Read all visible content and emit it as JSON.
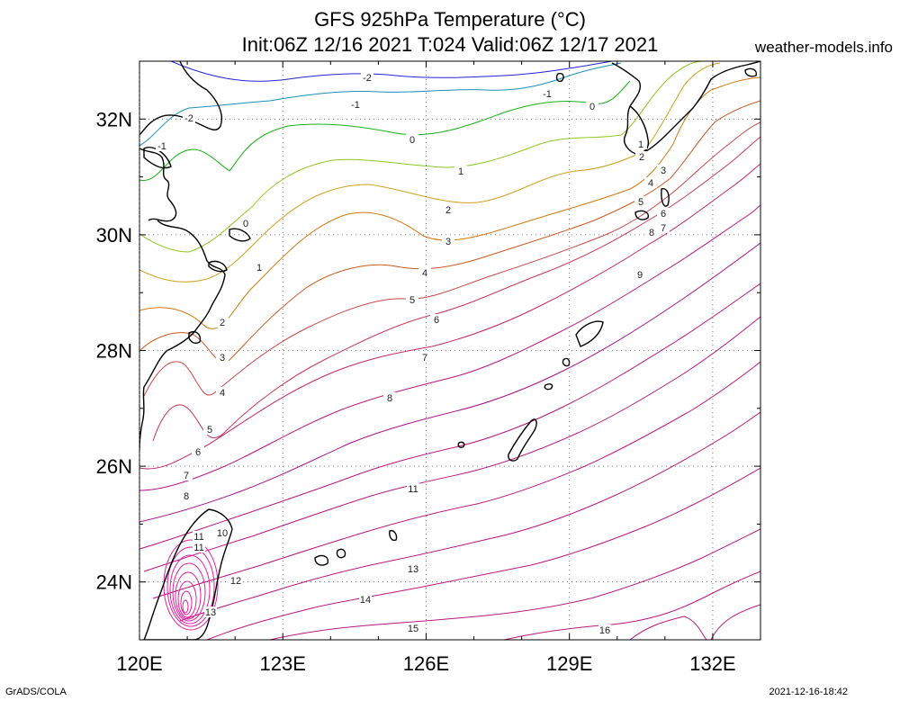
{
  "header": {
    "title_line1": "GFS 925hPa Temperature (°C)",
    "title_line2": "Init:06Z 12/16 2021 T:024 Valid:06Z 12/17 2021",
    "site": "weather-models.info"
  },
  "footer": {
    "left": "GrADS/COLA",
    "right": "2021-12-16-18:42"
  },
  "axes": {
    "lat_ticks": [
      "32N",
      "30N",
      "28N",
      "26N",
      "24N"
    ],
    "lon_ticks": [
      "120E",
      "123E",
      "126E",
      "129E",
      "132E"
    ],
    "lon_range": [
      120,
      133
    ],
    "lat_range": [
      23,
      33
    ]
  },
  "contour_labels": [
    "-2",
    "-1",
    "0",
    "1",
    "2",
    "3",
    "4",
    "5",
    "6",
    "7",
    "8",
    "9",
    "10",
    "11",
    "12",
    "13",
    "14",
    "15",
    "16"
  ],
  "colors": {
    "-2": "#2323d8",
    "-1": "#1a8fb8",
    "0": "#18b018",
    "1": "#8cc823",
    "2": "#d0a020",
    "3": "#d07810",
    "4": "#c85a20",
    "5": "#c84848",
    "6": "#c8385a",
    "7": "#c02868",
    "8": "#b81880",
    "9": "#a8128a",
    "10": "#b81880",
    "11": "#b81880",
    "12": "#b81880",
    "13": "#b81880",
    "14": "#b81880",
    "15": "#b81880",
    "16": "#b81880",
    "warm": "#e020a0"
  }
}
